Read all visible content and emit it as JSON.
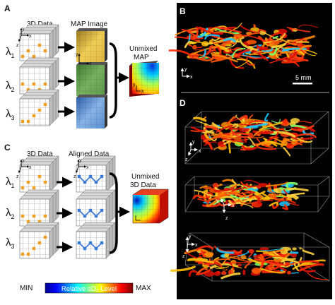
{
  "panels": {
    "a": "A",
    "b": "B",
    "c": "C",
    "d": "D"
  },
  "panel_a": {
    "col1_title": "3D Data",
    "col2_title": "MAP Image",
    "result_title_line1": "Unmixed",
    "result_title_line2": "MAP",
    "lambdas": [
      {
        "symbol": "λ",
        "sub": "1"
      },
      {
        "symbol": "λ",
        "sub": "2"
      },
      {
        "symbol": "λ",
        "sub": "3"
      }
    ],
    "axis_x": "x",
    "axis_y": "y",
    "axis_z": "z"
  },
  "panel_c": {
    "col1_title": "3D Data",
    "col2_title": "Aligned Data",
    "result_title_line1": "Unmixed",
    "result_title_line2": "3D Data"
  },
  "panel_b": {
    "scale_bar": "5 mm",
    "axis_x": "x",
    "axis_y": "y"
  },
  "panel_d": {
    "axis_x": "x",
    "axis_y": "y",
    "axis_z": "z"
  },
  "colorbar": {
    "min": "MIN",
    "label": "Relative sO₂ Level",
    "max": "MAX"
  },
  "colors": {
    "dot": "#f0a020",
    "blue_line": "#3a7bd5",
    "map_yellow": "#e8c24a",
    "map_green": "#5d9a4a",
    "map_blue": "#5b8fd0"
  }
}
